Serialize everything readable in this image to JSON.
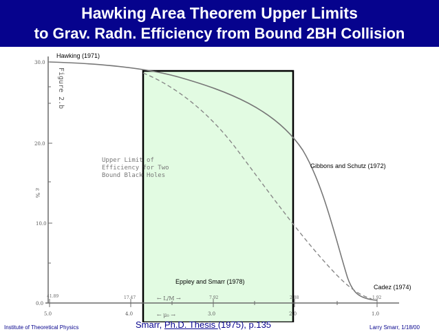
{
  "title": {
    "line1": "Hawking Area Theorem Upper Limits",
    "line2": "to Grav. Radn. Efficiency from Bound 2BH Collision"
  },
  "figure": {
    "figure_label": "Figure 2.b",
    "upper_text": [
      "Upper Limit of",
      "Efficiency for Two",
      "Bound Black Holes"
    ],
    "y_ticks": [
      "30.0",
      "20.0",
      "10.0",
      "0.0"
    ],
    "y_axis_symbol": "ε %",
    "x_ticks": [
      "5.0",
      "4.0",
      "3.0",
      "2.0",
      "1.0"
    ],
    "x_axis_label": "← L/M →",
    "x_axis_label2": "← μ₀ →",
    "top_tick_labels": [
      "41.89",
      "17.47",
      "7.92",
      "2.88",
      "1.92"
    ],
    "curve_labels": {
      "hawking": "Hawking (1971)",
      "gibbons": "Gibbons and Schutz (1972)",
      "eppley": "Eppley and Smarr (1978)",
      "cadez": "Cadez (1974)"
    },
    "highlight_color": "#e2fbe2",
    "curve_color": "#777777"
  },
  "footer": {
    "left": "Institute of Theoretical Physics",
    "center_prefix": "Smarr, ",
    "center_link": "Ph.D. Thesis ",
    "center_suffix": "(1975), p.135",
    "right": "Larry Smarr, 1/18/00"
  },
  "colors": {
    "title_bg": "#06038d",
    "title_text": "#ffffff",
    "footer_blue": "#06038d"
  }
}
